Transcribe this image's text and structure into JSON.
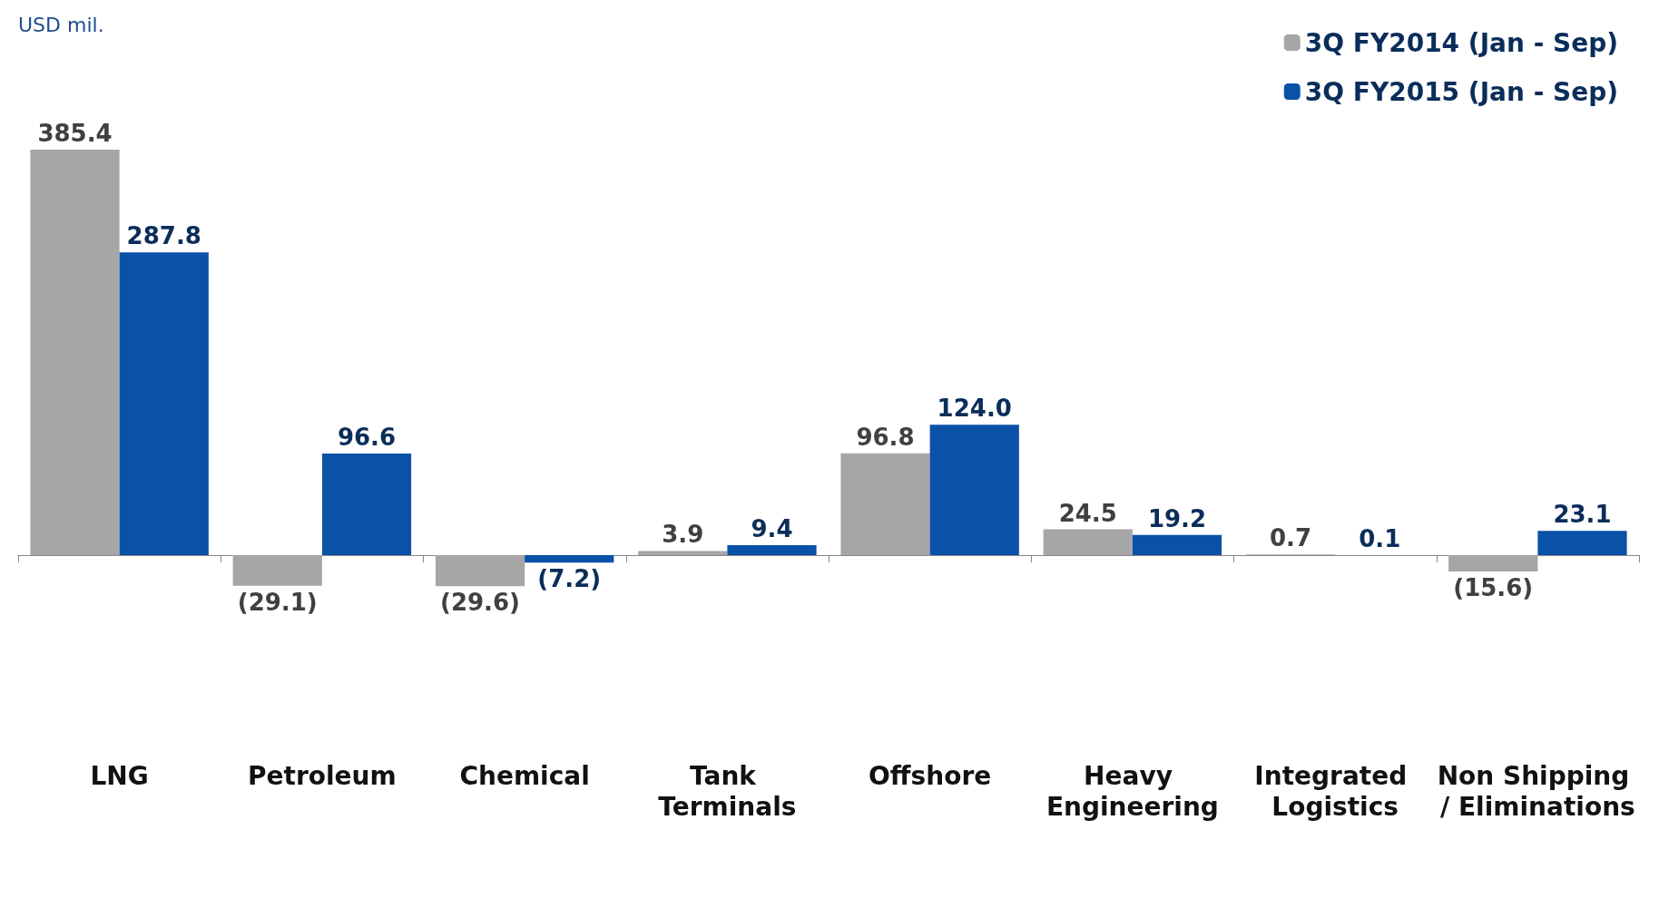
{
  "chart_data": {
    "type": "bar",
    "annotations": [
      "USD mil."
    ],
    "categories": [
      "LNG",
      "Petroleum",
      "Chemical",
      "Tank Terminals",
      "Offshore",
      "Heavy Engineering",
      "Integrated Logistics",
      "Non Shipping / Eliminations"
    ],
    "series": [
      {
        "name": "3Q FY2014 (Jan - Sep)",
        "color": "#a6a6a6",
        "values": [
          385.4,
          -29.1,
          -29.6,
          3.9,
          96.8,
          24.5,
          0.7,
          -15.6
        ],
        "value_labels": [
          "385.4",
          "(29.1)",
          "(29.6)",
          "3.9",
          "96.8",
          "24.5",
          "0.7",
          "(15.6)"
        ]
      },
      {
        "name": "3Q FY2015 (Jan - Sep)",
        "color": "#0a52a8",
        "values": [
          287.8,
          96.6,
          -7.2,
          9.4,
          124.0,
          19.2,
          0.1,
          23.1
        ],
        "value_labels": [
          "287.8",
          "96.6",
          "(7.2)",
          "9.4",
          "124.0",
          "19.2",
          "0.1",
          "23.1"
        ]
      }
    ],
    "legend": "top right",
    "grid": false
  }
}
